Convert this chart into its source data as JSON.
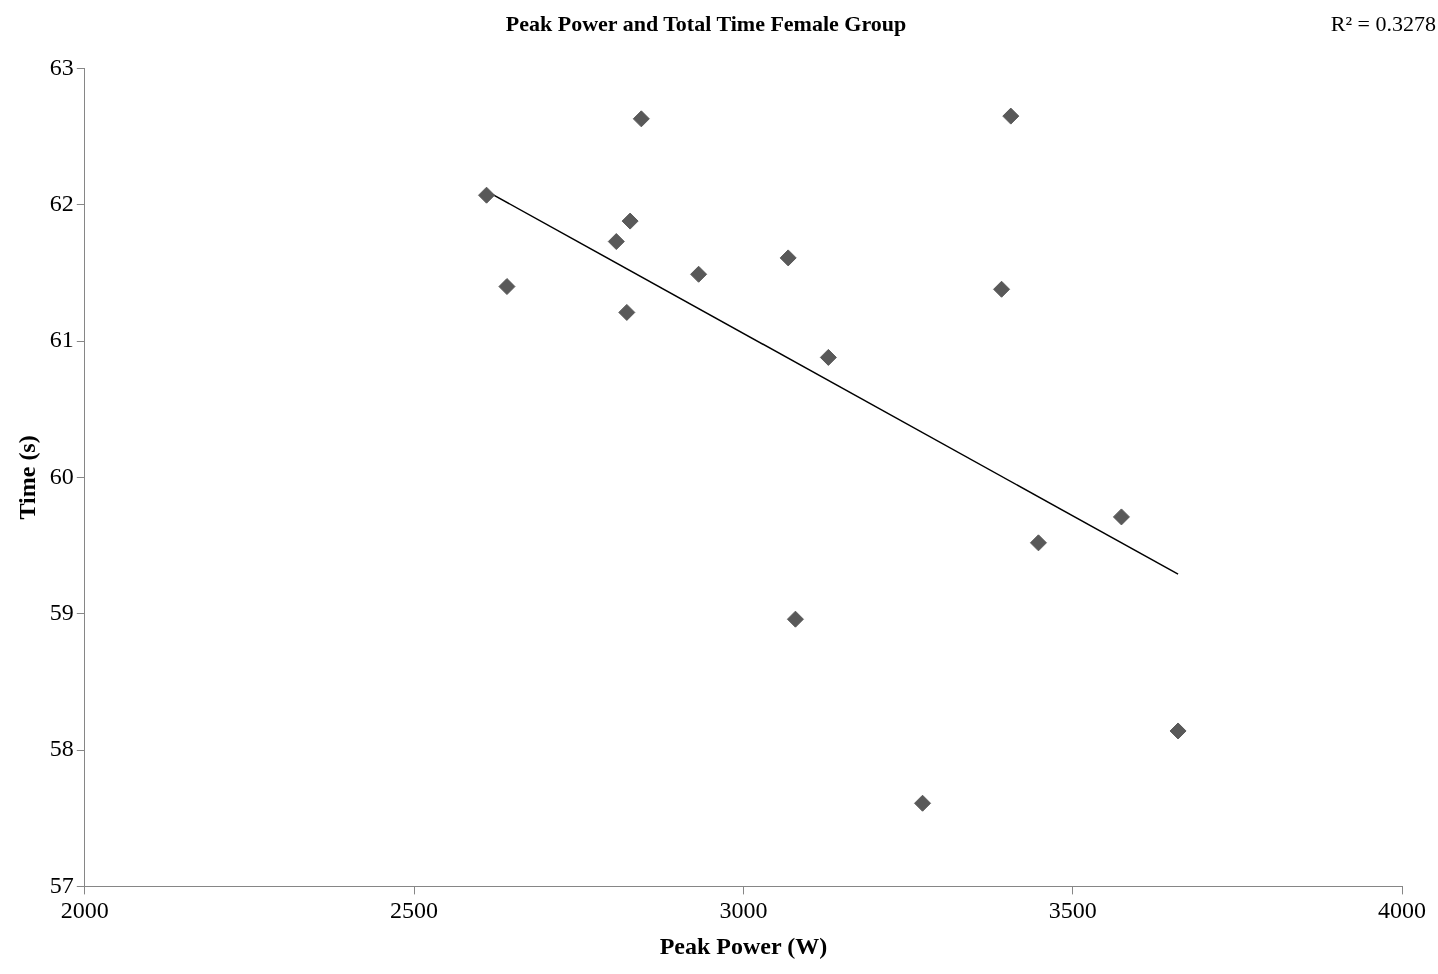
{
  "chart_data": {
    "type": "scatter",
    "title": "Peak Power and Total Time Female Group",
    "xlabel": "Peak Power (W)",
    "ylabel": "Time (s)",
    "annotations": [
      "R² = 0.3278"
    ],
    "xlim": [
      2000,
      4000
    ],
    "xticks": [
      2000,
      2500,
      3000,
      3500,
      4000
    ],
    "ylim": [
      57,
      63
    ],
    "yticks": [
      57,
      58,
      59,
      60,
      61,
      62,
      63
    ],
    "grid": false,
    "series": [
      {
        "type": "scatter",
        "marker": "diamond",
        "color": "#595959",
        "x": [
          2610,
          2641,
          2807,
          2828,
          2823,
          2845,
          2932,
          3068,
          3079,
          3129,
          3272,
          3392,
          3406,
          3448,
          3574,
          3660
        ],
        "values": [
          62.07,
          61.4,
          61.73,
          61.88,
          61.21,
          62.63,
          61.49,
          61.61,
          58.96,
          60.88,
          57.61,
          61.38,
          62.65,
          59.52,
          59.71,
          58.14
        ]
      },
      {
        "type": "line",
        "marker": "none",
        "color": "#000000",
        "x": [
          2610,
          3660
        ],
        "values": [
          62.1,
          59.29
        ]
      }
    ]
  }
}
